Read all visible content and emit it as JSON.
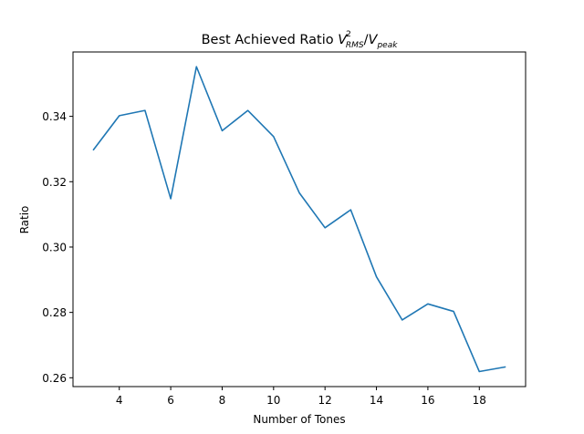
{
  "chart_data": {
    "type": "line",
    "title": {
      "prefix": "Best Achieved Ratio ",
      "v1": "V",
      "v1_sup": "2",
      "v1_sub": "RMS",
      "slash": "/",
      "v2": "V",
      "v2_sub": "peak"
    },
    "xlabel": "Number of Tones",
    "ylabel": "Ratio",
    "xlim": [
      2.2,
      19.8
    ],
    "ylim": [
      0.2573,
      0.3597
    ],
    "xticks": [
      4,
      6,
      8,
      10,
      12,
      14,
      16,
      18
    ],
    "xtick_labels": [
      "4",
      "6",
      "8",
      "10",
      "12",
      "14",
      "16",
      "18"
    ],
    "yticks": [
      0.26,
      0.28,
      0.3,
      0.32,
      0.34
    ],
    "ytick_labels": [
      "0.26",
      "0.28",
      "0.30",
      "0.32",
      "0.34"
    ],
    "grid": false,
    "series": [
      {
        "color": "#1f77b4",
        "x": [
          3,
          4,
          5,
          6,
          7,
          8,
          9,
          10,
          11,
          12,
          13,
          14,
          15,
          16,
          17,
          18,
          19
        ],
        "y": [
          0.3298,
          0.3402,
          0.3418,
          0.3148,
          0.3552,
          0.3356,
          0.3418,
          0.3338,
          0.3166,
          0.3059,
          0.3114,
          0.2909,
          0.2777,
          0.2826,
          0.2803,
          0.2619,
          0.2633
        ]
      }
    ]
  }
}
